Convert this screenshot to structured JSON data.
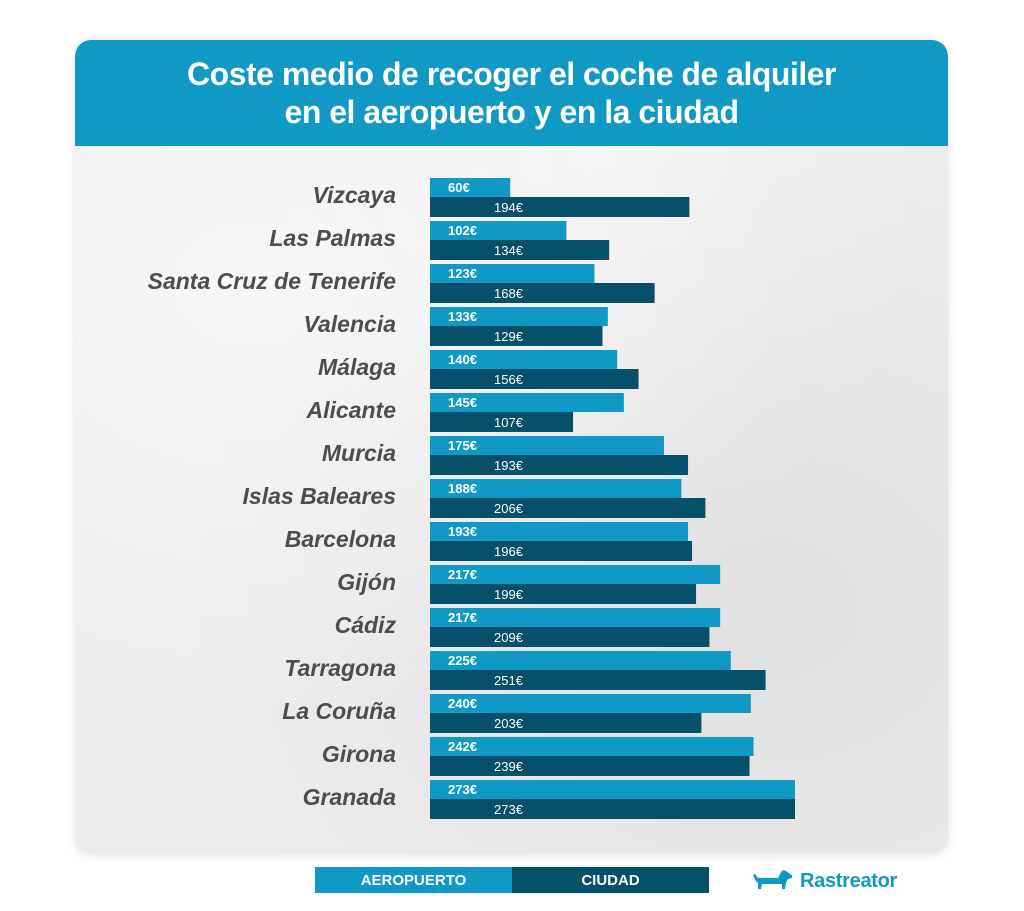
{
  "colors": {
    "aeropuerto": "#1199c6",
    "ciudad": "#07506a",
    "label": "#4d4d4f"
  },
  "chart_data": {
    "type": "bar",
    "orientation": "horizontal",
    "title": [
      "Coste medio de recoger el coche de alquiler",
      "en el aeropuerto y en la ciudad"
    ],
    "categories": [
      "Vizcaya",
      "Las Palmas",
      "Santa Cruz de Tenerife",
      "Valencia",
      "Málaga",
      "Alicante",
      "Murcia",
      "Islas Baleares",
      "Barcelona",
      "Gijón",
      "Cádiz",
      "Tarragona",
      "La Coruña",
      "Girona",
      "Granada"
    ],
    "series": [
      {
        "name": "AEROPUERTO",
        "values": [
          60,
          102,
          123,
          133,
          140,
          145,
          175,
          188,
          193,
          217,
          217,
          225,
          240,
          242,
          273
        ]
      },
      {
        "name": "CIUDAD",
        "values": [
          194,
          134,
          168,
          129,
          156,
          107,
          193,
          206,
          196,
          199,
          209,
          251,
          203,
          239,
          273
        ]
      }
    ],
    "value_suffix": "€",
    "xlim": [
      0,
      273
    ],
    "grid": false,
    "legend_position": "bottom"
  },
  "brand": {
    "name": "Rastreator",
    "icon": "dachshund-dog-icon"
  }
}
